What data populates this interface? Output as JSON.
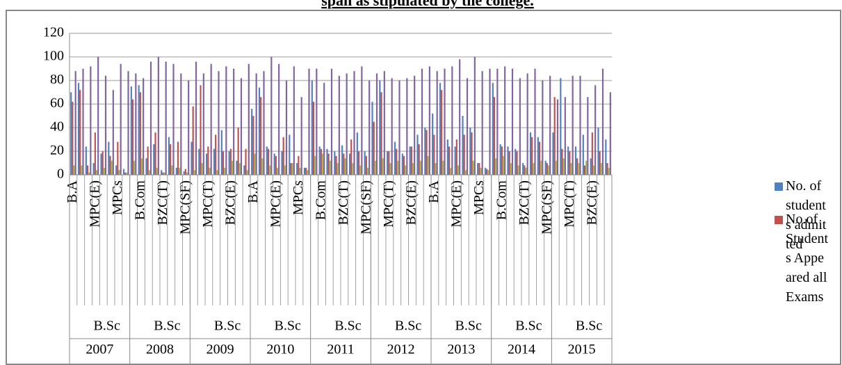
{
  "chart_data": {
    "type": "bar",
    "title": "span as stipulated by the college.",
    "categories": [
      "B.A",
      null,
      null,
      "MPC(E)",
      null,
      null,
      "MPCs",
      null,
      null,
      "B.Com",
      null,
      null,
      "BZC(T)",
      null,
      null,
      "MPC(SF)",
      null,
      null,
      "MPC(T)",
      null,
      null,
      "BZC(E)",
      null,
      null,
      "B.A",
      null,
      null,
      "MPC(E)",
      null,
      null,
      "MPCs",
      null,
      null,
      "B.Com",
      null,
      null,
      "BZC(T)",
      null,
      null,
      "MPC(SF)",
      null,
      null,
      "MPC(T)",
      null,
      null,
      "BZC(E)",
      null,
      null,
      "B.A",
      null,
      null,
      "MPC(E)",
      null,
      null,
      "MPCs",
      null,
      null,
      "B.Com",
      null,
      null,
      "BZC(T)",
      null,
      null,
      "MPC(SF)",
      null,
      null,
      "MPC(T)",
      null,
      null,
      "BZC(E)",
      null,
      null
    ],
    "group_labels": [
      "B.Sc",
      "B.Sc",
      "B.Sc",
      "B.Sc",
      "B.Sc",
      "B.Sc",
      "B.Sc",
      "B.Sc",
      "B.Sc"
    ],
    "years": [
      "2007",
      "2008",
      "2009",
      "2010",
      "2011",
      "2012",
      "2013",
      "2014",
      "2015"
    ],
    "series": [
      {
        "name": "No. of students admitted",
        "color": "#4f81bd",
        "values": [
          70,
          78,
          24,
          10,
          18,
          28,
          8,
          5,
          75,
          76,
          14,
          26,
          4,
          32,
          6,
          3,
          28,
          22,
          18,
          22,
          38,
          20,
          12,
          8,
          56,
          74,
          24,
          18,
          20,
          34,
          10,
          6,
          80,
          24,
          22,
          20,
          25,
          18,
          36,
          20,
          62,
          80,
          20,
          28,
          18,
          24,
          34,
          40,
          52,
          78,
          30,
          24,
          50,
          40,
          10,
          6,
          78,
          26,
          24,
          22,
          10,
          36,
          32,
          12,
          36,
          82,
          24,
          24,
          34,
          14,
          40,
          30
        ]
      },
      {
        "name": "No.of Students Appeared all Exams",
        "color": "#c0504d",
        "values": [
          62,
          72,
          8,
          36,
          20,
          16,
          28,
          2,
          64,
          70,
          24,
          36,
          2,
          26,
          28,
          5,
          58,
          76,
          24,
          34,
          20,
          22,
          40,
          22,
          50,
          66,
          22,
          16,
          32,
          10,
          16,
          6,
          62,
          22,
          18,
          16,
          18,
          30,
          20,
          16,
          45,
          70,
          20,
          22,
          16,
          24,
          26,
          38,
          34,
          72,
          24,
          30,
          34,
          36,
          10,
          5,
          66,
          24,
          20,
          20,
          8,
          32,
          28,
          10,
          66,
          22,
          20,
          14,
          8,
          36,
          20,
          10
        ]
      },
      {
        "color": "#9bbb59",
        "values": [
          8,
          8,
          2,
          4,
          6,
          12,
          4,
          2,
          12,
          14,
          4,
          6,
          2,
          8,
          6,
          2,
          4,
          10,
          6,
          4,
          6,
          12,
          10,
          4,
          18,
          14,
          8,
          6,
          8,
          10,
          6,
          4,
          16,
          18,
          12,
          10,
          14,
          10,
          8,
          6,
          12,
          14,
          10,
          12,
          8,
          10,
          12,
          16,
          10,
          12,
          6,
          8,
          4,
          12,
          6,
          4,
          14,
          16,
          10,
          8,
          6,
          10,
          12,
          8,
          12,
          14,
          10,
          10,
          12,
          8,
          10,
          6
        ]
      },
      {
        "color": "#8064a2",
        "values": [
          88,
          90,
          92,
          100,
          84,
          72,
          94,
          88,
          86,
          82,
          96,
          100,
          96,
          94,
          86,
          80,
          96,
          86,
          94,
          88,
          92,
          90,
          82,
          94,
          86,
          88,
          100,
          94,
          80,
          92,
          66,
          90,
          90,
          78,
          90,
          84,
          86,
          88,
          92,
          80,
          86,
          88,
          82,
          80,
          82,
          84,
          90,
          92,
          88,
          90,
          92,
          98,
          82,
          100,
          88,
          90,
          90,
          92,
          90,
          82,
          86,
          90,
          80,
          84,
          64,
          66,
          84,
          84,
          66,
          76,
          90,
          70
        ]
      }
    ],
    "ylim": [
      0,
      120
    ],
    "yticks": [
      0,
      20,
      40,
      60,
      80,
      100,
      120
    ],
    "grid": true
  }
}
